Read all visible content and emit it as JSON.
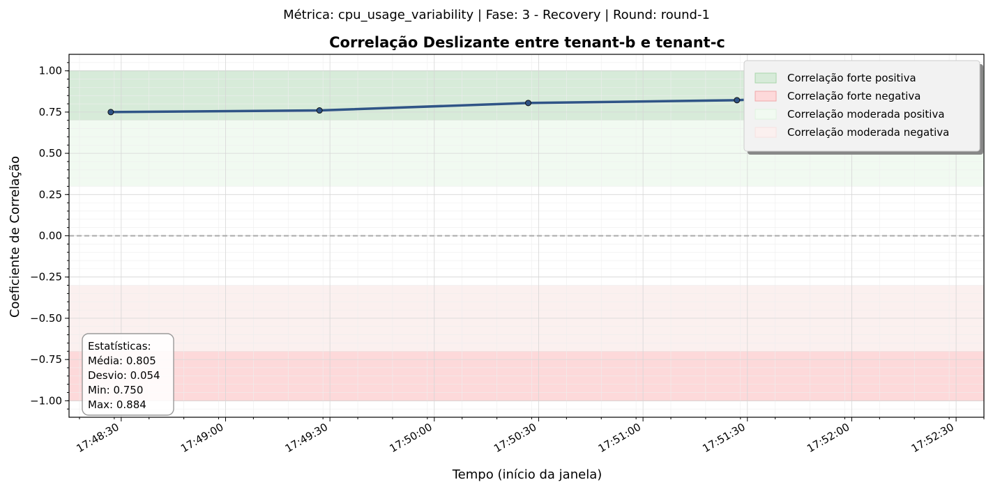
{
  "suptitle": "Métrica: cpu_usage_variability | Fase: 3 - Recovery | Round: round-1",
  "chart_data": {
    "type": "line",
    "title": "Correlação Deslizante entre tenant-b e tenant-c",
    "xlabel": "Tempo (início da janela)",
    "ylabel": "Coeficiente de Correlação",
    "ylim": [
      -1.1,
      1.1
    ],
    "xlim": [
      "17:48:15",
      "17:52:38"
    ],
    "grid": true,
    "x_ticks": [
      "17:48:30",
      "17:49:00",
      "17:49:30",
      "17:50:00",
      "17:50:30",
      "17:51:00",
      "17:51:30",
      "17:52:00",
      "17:52:30"
    ],
    "y_ticks": [
      "1.00",
      "0.75",
      "0.50",
      "0.25",
      "0.00",
      "−0.25",
      "−0.50",
      "−0.75",
      "−1.00"
    ],
    "series": [
      {
        "x": [
          "17:48:27",
          "17:49:27",
          "17:50:27",
          "17:51:27",
          "17:52:27"
        ],
        "values": [
          0.75,
          0.76,
          0.805,
          0.822,
          0.884
        ],
        "color": "#2f5486"
      }
    ],
    "reference_line": {
      "y": 0.0,
      "style": "dashed",
      "color": "#aaaaaa"
    },
    "bands": [
      {
        "label": "Correlação forte positiva",
        "from": 0.7,
        "to": 1.0,
        "color": "#d7ebd9"
      },
      {
        "label": "Correlação forte negativa",
        "from": -1.0,
        "to": -0.7,
        "color": "#fdd9da"
      },
      {
        "label": "Correlação moderada positiva",
        "from": 0.3,
        "to": 0.7,
        "color": "#f1faf1"
      },
      {
        "label": "Correlação moderada negativa",
        "from": -0.7,
        "to": -0.3,
        "color": "#fbf0ef"
      }
    ],
    "legend_placement": "top-right",
    "stats": [
      "Estatísticas:",
      "Média: 0.805",
      "Desvio: 0.054",
      "Min: 0.750",
      "Max: 0.884"
    ]
  }
}
